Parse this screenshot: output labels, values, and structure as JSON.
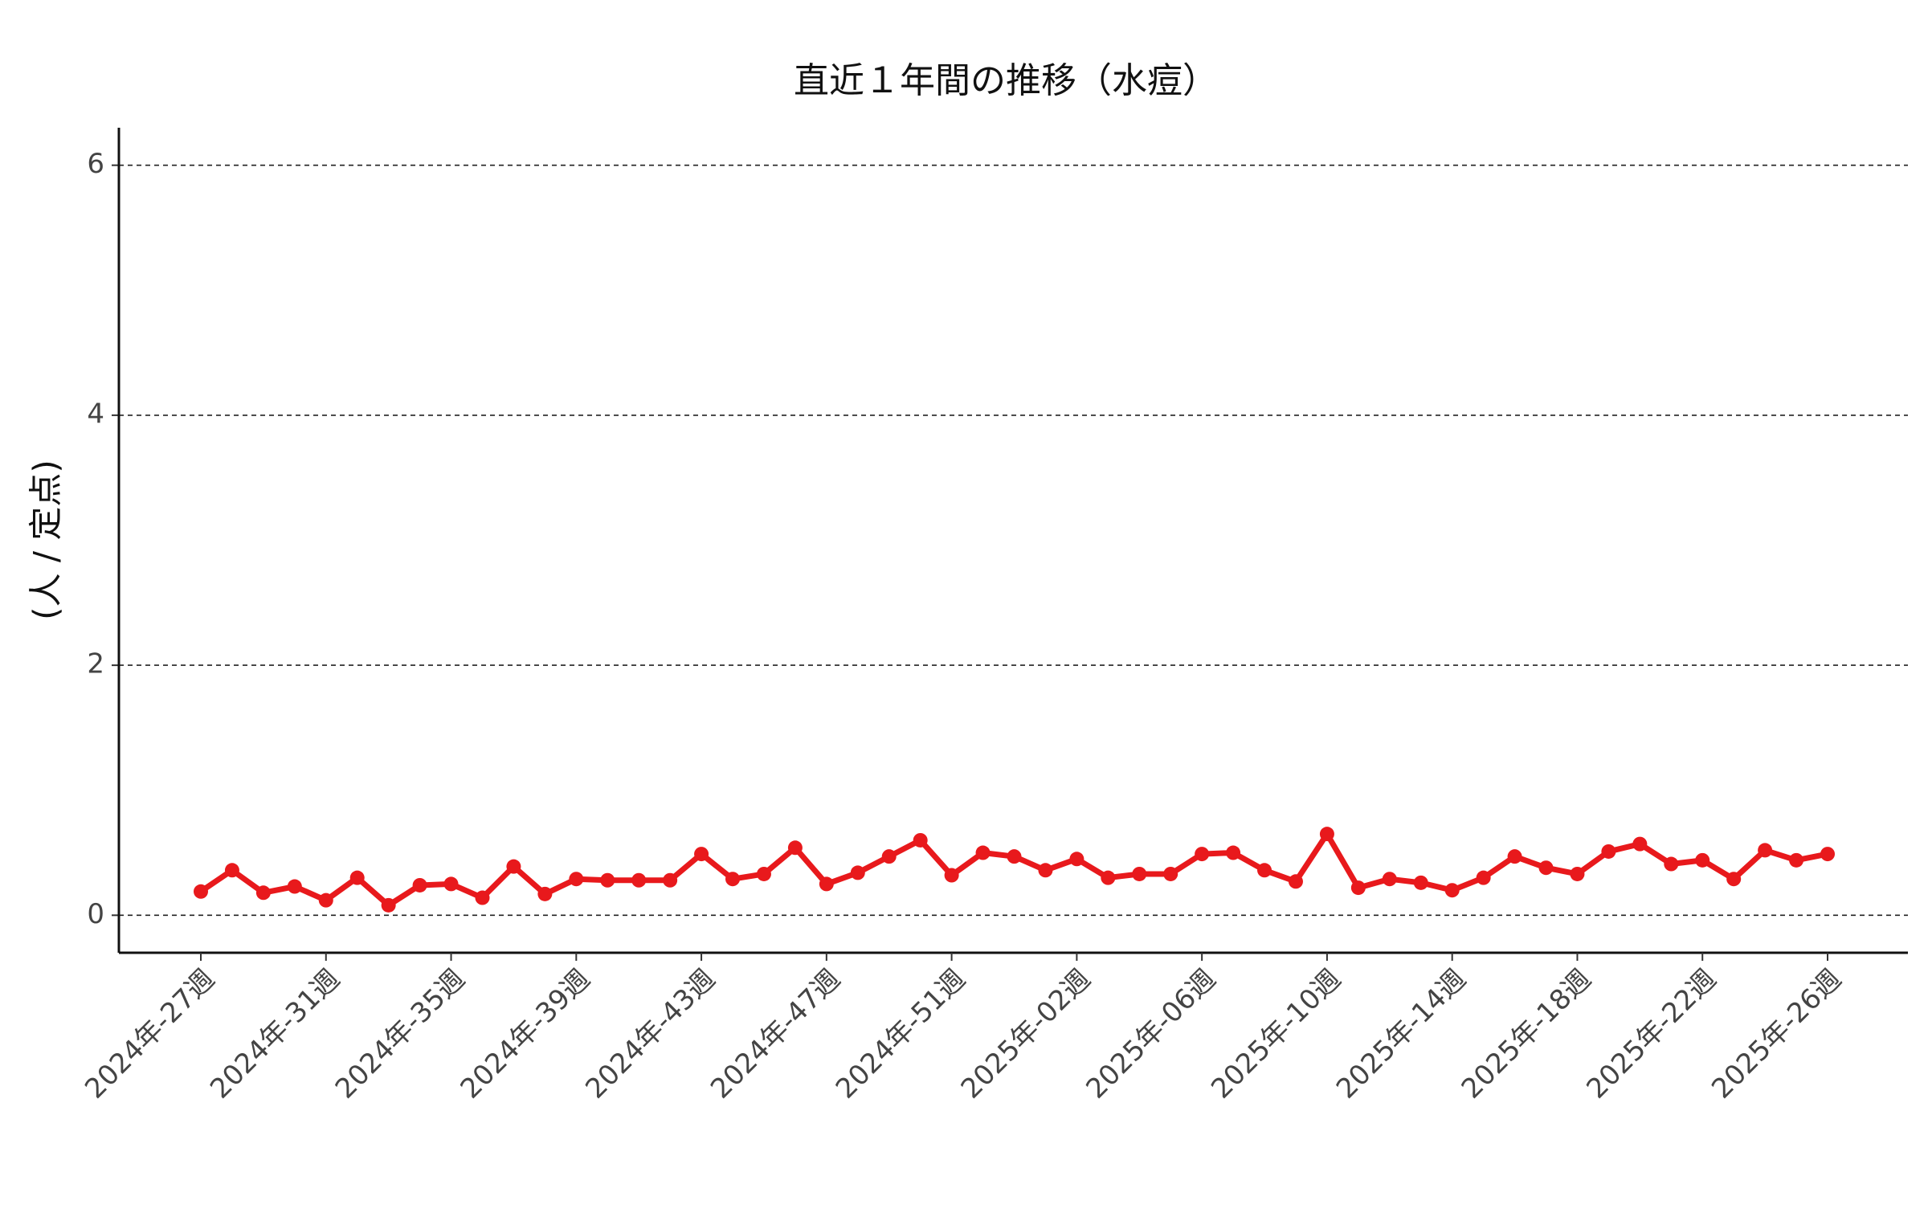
{
  "chart_data": {
    "type": "line",
    "title": "直近１年間の推移（水痘）",
    "y_label": "(人 / 定点)",
    "categories": [
      "2024年-27週",
      null,
      null,
      null,
      "2024年-31週",
      null,
      null,
      null,
      "2024年-35週",
      null,
      null,
      null,
      "2024年-39週",
      null,
      null,
      null,
      "2024年-43週",
      null,
      null,
      null,
      "2024年-47週",
      null,
      null,
      null,
      "2024年-51週",
      null,
      null,
      null,
      "2025年-02週",
      null,
      null,
      null,
      "2025年-06週",
      null,
      null,
      null,
      "2025年-10週",
      null,
      null,
      null,
      "2025年-14週",
      null,
      null,
      null,
      "2025年-18週",
      null,
      null,
      null,
      "2025年-22週",
      null,
      null,
      null,
      "2025年-26週"
    ],
    "values": [
      0.19,
      0.36,
      0.18,
      0.23,
      0.12,
      0.3,
      0.08,
      0.24,
      0.25,
      0.14,
      0.39,
      0.17,
      0.29,
      0.28,
      0.28,
      0.28,
      0.49,
      0.29,
      0.33,
      0.54,
      0.25,
      0.34,
      0.47,
      0.6,
      0.32,
      0.5,
      0.47,
      0.36,
      0.45,
      0.3,
      0.33,
      0.33,
      0.49,
      0.5,
      0.36,
      0.27,
      0.65,
      0.22,
      0.29,
      0.26,
      0.2,
      0.3,
      0.47,
      0.38,
      0.33,
      0.51,
      0.57,
      0.41,
      0.44,
      0.29,
      0.52,
      0.44,
      0.49
    ],
    "color": "#e8191c",
    "ylim": [
      -0.3,
      6.3
    ],
    "yticks": [
      0,
      2,
      4,
      6
    ],
    "grid": true
  }
}
